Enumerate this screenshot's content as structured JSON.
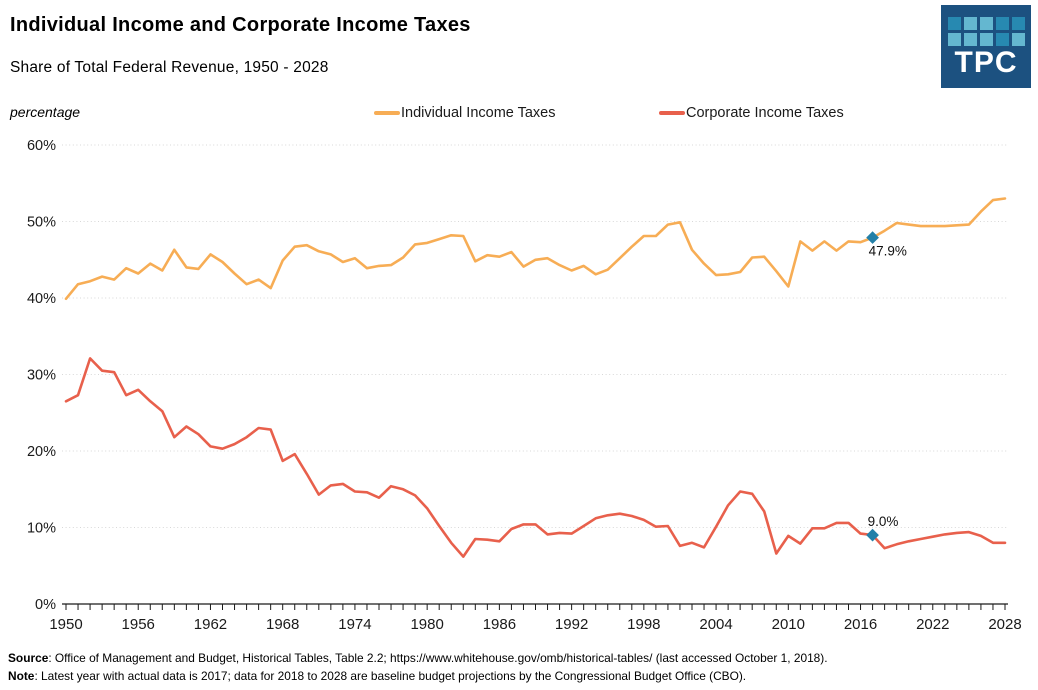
{
  "logo": {
    "text": "TPC",
    "background": "#1c5180",
    "square_colors": {
      "m": "#2789b1",
      "l": "#64b7d0"
    },
    "grid": [
      [
        "m",
        "l",
        "l",
        "m",
        "m"
      ],
      [
        "l",
        "l",
        "l",
        "m",
        "l"
      ]
    ]
  },
  "chart_data": {
    "type": "line",
    "title": "Individual Income and Corporate Income Taxes",
    "subtitle": "Share of Total Federal Revenue, 1950 - 2028",
    "ylabel": "percentage",
    "ylim": [
      0,
      60
    ],
    "y_tick_step": 10,
    "y_tick_suffix": "%",
    "grid": "horizontal-dotted",
    "legend_position": "top",
    "x_tick_labels": [
      1950,
      1956,
      1962,
      1968,
      1974,
      1980,
      1986,
      1992,
      1998,
      2004,
      2010,
      2016,
      2022,
      2028
    ],
    "years": [
      1950,
      1951,
      1952,
      1953,
      1954,
      1955,
      1956,
      1957,
      1958,
      1959,
      1960,
      1961,
      1962,
      1963,
      1964,
      1965,
      1966,
      1967,
      1968,
      1969,
      1970,
      1971,
      1972,
      1973,
      1974,
      1975,
      1976,
      1977,
      1978,
      1979,
      1980,
      1981,
      1982,
      1983,
      1984,
      1985,
      1986,
      1987,
      1988,
      1989,
      1990,
      1991,
      1992,
      1993,
      1994,
      1995,
      1996,
      1997,
      1998,
      1999,
      2000,
      2001,
      2002,
      2003,
      2004,
      2005,
      2006,
      2007,
      2008,
      2009,
      2010,
      2011,
      2012,
      2013,
      2014,
      2015,
      2016,
      2017,
      2018,
      2019,
      2020,
      2021,
      2022,
      2023,
      2024,
      2025,
      2026,
      2027,
      2028
    ],
    "series": [
      {
        "name": "Individual Income Taxes",
        "color": "#f7ad55",
        "values": [
          39.9,
          41.8,
          42.2,
          42.8,
          42.4,
          43.9,
          43.2,
          44.5,
          43.6,
          46.3,
          44.0,
          43.8,
          45.7,
          44.7,
          43.2,
          41.8,
          42.4,
          41.3,
          44.9,
          46.7,
          46.9,
          46.1,
          45.7,
          44.7,
          45.2,
          43.9,
          44.2,
          44.3,
          45.3,
          47.0,
          47.2,
          47.7,
          48.2,
          48.1,
          44.8,
          45.6,
          45.4,
          46.0,
          44.1,
          45.0,
          45.2,
          44.3,
          43.6,
          44.2,
          43.1,
          43.7,
          45.2,
          46.7,
          48.1,
          48.1,
          49.6,
          49.9,
          46.3,
          44.5,
          43.0,
          43.1,
          43.4,
          45.3,
          45.4,
          43.5,
          41.5,
          47.4,
          46.2,
          47.4,
          46.2,
          47.4,
          47.3,
          47.9,
          48.8,
          49.8,
          49.6,
          49.4,
          49.4,
          49.4,
          49.5,
          49.6,
          51.3,
          52.8,
          53.0
        ]
      },
      {
        "name": "Corporate Income Taxes",
        "color": "#e8604c",
        "values": [
          26.5,
          27.3,
          32.1,
          30.5,
          30.3,
          27.3,
          28.0,
          26.5,
          25.2,
          21.8,
          23.2,
          22.2,
          20.6,
          20.3,
          20.9,
          21.8,
          23.0,
          22.8,
          18.7,
          19.6,
          17.0,
          14.3,
          15.5,
          15.7,
          14.7,
          14.6,
          13.9,
          15.4,
          15.0,
          14.2,
          12.5,
          10.2,
          8.0,
          6.2,
          8.5,
          8.4,
          8.2,
          9.8,
          10.4,
          10.4,
          9.1,
          9.3,
          9.2,
          10.2,
          11.2,
          11.6,
          11.8,
          11.5,
          11.0,
          10.1,
          10.2,
          7.6,
          8.0,
          7.4,
          10.1,
          12.9,
          14.7,
          14.4,
          12.1,
          6.6,
          8.9,
          7.9,
          9.9,
          9.9,
          10.6,
          10.6,
          9.2,
          9.0,
          7.3,
          7.8,
          8.2,
          8.5,
          8.8,
          9.1,
          9.3,
          9.4,
          8.9,
          8.0,
          8.0
        ]
      }
    ],
    "marker_color": "#2380a8",
    "annotations": [
      {
        "series_index": 0,
        "year": 2017,
        "label": "47.9%",
        "position": "below"
      },
      {
        "series_index": 1,
        "year": 2017,
        "label": "9.0%",
        "position": "above"
      }
    ]
  },
  "footer": {
    "source_label": "Source",
    "source_text": ": Office of Management and Budget, Historical Tables, Table 2.2; https://www.whitehouse.gov/omb/historical-tables/ (last accessed October 1, 2018).",
    "note_label": "Note",
    "note_text": ": Latest year with actual data is 2017; data for 2018 to 2028 are baseline budget projections by the Congressional Budget Office (CBO)."
  }
}
